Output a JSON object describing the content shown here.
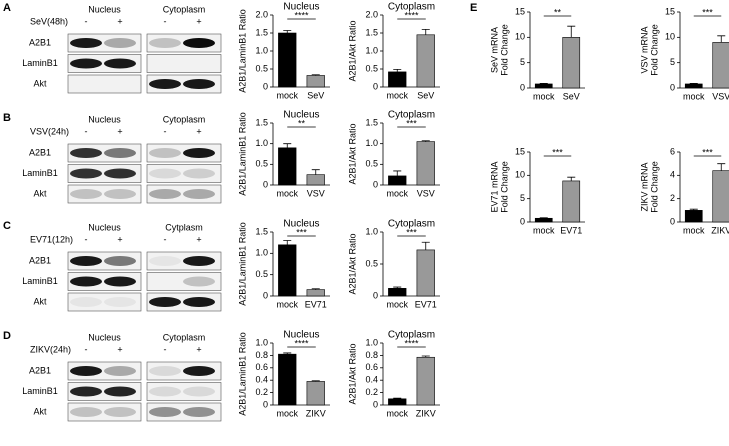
{
  "panels": [
    {
      "label": "A",
      "treatment": "SeV(48h)",
      "groups": [
        "Nucleus",
        "Cytoplasm"
      ],
      "lanes": [
        "-",
        "+"
      ],
      "rows": [
        "A2B1",
        "LaminB1",
        "Akt"
      ]
    },
    {
      "label": "B",
      "treatment": "VSV(24h)",
      "groups": [
        "Nucleus",
        "Cytoplasm"
      ],
      "lanes": [
        "-",
        "+"
      ],
      "rows": [
        "A2B1",
        "LaminB1",
        "Akt"
      ]
    },
    {
      "label": "C",
      "treatment": "EV71(12h)",
      "groups": [
        "Nucleus",
        "Cytplasm"
      ],
      "lanes": [
        "-",
        "+"
      ],
      "rows": [
        "A2B1",
        "LaminB1",
        "Akt"
      ]
    },
    {
      "label": "D",
      "treatment": "ZIKV(24h)",
      "groups": [
        "Nucleus",
        "Cytoplasm"
      ],
      "lanes": [
        "-",
        "+"
      ],
      "rows": [
        "A2B1",
        "LaminB1",
        "Akt"
      ]
    }
  ],
  "panel_e": {
    "label": "E"
  },
  "chart_data": [
    {
      "type": "bar",
      "title": "Nucleus",
      "ylabel": [
        "A2B1/LaminB1 Ratio"
      ],
      "categories": [
        "mock",
        "SeV"
      ],
      "values": [
        1.5,
        0.32
      ],
      "errors": [
        0.07,
        0.02
      ],
      "colors": [
        "#000000",
        "#999999"
      ],
      "significance": "****",
      "ylim": [
        0,
        2
      ],
      "yticks": [
        0,
        {
          "value": 0.5,
          "label": "0.5"
        },
        {
          "value": 1,
          "label": "1.0"
        },
        1.5,
        {
          "value": 2,
          "label": "2.0"
        }
      ]
    },
    {
      "type": "bar",
      "title": "Cytoplasm",
      "ylabel": [
        "A2B1/Akt Ratio"
      ],
      "categories": [
        "mock",
        "SeV"
      ],
      "values": [
        0.42,
        1.45
      ],
      "errors": [
        0.07,
        0.15
      ],
      "colors": [
        "#000000",
        "#999999"
      ],
      "significance": "****",
      "ylim": [
        0,
        2
      ],
      "yticks": [
        0,
        0.5,
        {
          "value": 1,
          "label": "1.0"
        },
        1.5,
        {
          "value": 2,
          "label": "2.0"
        }
      ]
    },
    {
      "type": "bar",
      "title": "Nucleus",
      "ylabel": [
        "A2B1/LaminB1 Ratio"
      ],
      "categories": [
        "mock",
        "VSV"
      ],
      "values": [
        0.9,
        0.25
      ],
      "errors": [
        0.1,
        0.12
      ],
      "colors": [
        "#000000",
        "#999999"
      ],
      "significance": "**",
      "ylim": [
        0,
        1.5
      ],
      "yticks": [
        0,
        0.5,
        {
          "value": 1,
          "label": "1.0"
        },
        1.5
      ]
    },
    {
      "type": "bar",
      "title": "Cytoplasm",
      "ylabel": [
        "A2B1/Akt Ratio"
      ],
      "categories": [
        "mock",
        "VSV"
      ],
      "values": [
        0.22,
        1.05
      ],
      "errors": [
        0.12,
        0.02
      ],
      "colors": [
        "#000000",
        "#999999"
      ],
      "significance": "***",
      "ylim": [
        0,
        1.5
      ],
      "yticks": [
        0,
        0.5,
        {
          "value": 1,
          "label": "1.0"
        },
        1.5
      ]
    },
    {
      "type": "bar",
      "title": "Nucleus",
      "ylabel": [
        "A2B1/LaminB1 Ratio"
      ],
      "categories": [
        "mock",
        "EV71"
      ],
      "values": [
        1.2,
        0.15
      ],
      "errors": [
        0.1,
        0.02
      ],
      "colors": [
        "#000000",
        "#999999"
      ],
      "significance": "***",
      "ylim": [
        0,
        1.5
      ],
      "yticks": [
        0,
        0.5,
        {
          "value": 1,
          "label": "1.0"
        },
        1.5
      ]
    },
    {
      "type": "bar",
      "title": "Cytoplasm",
      "ylabel": [
        "A2B1/Akt Ratio"
      ],
      "categories": [
        "mock",
        "EV71"
      ],
      "values": [
        0.12,
        0.72
      ],
      "errors": [
        0.02,
        0.12
      ],
      "colors": [
        "#000000",
        "#999999"
      ],
      "significance": "***",
      "ylim": [
        0,
        1
      ],
      "yticks": [
        0,
        0.5,
        {
          "value": 1,
          "label": "1.0"
        }
      ]
    },
    {
      "type": "bar",
      "title": "Nucleus",
      "ylabel": [
        "A2B1/LaminB1 Ratio"
      ],
      "categories": [
        "mock",
        "ZIKV"
      ],
      "values": [
        0.82,
        0.38
      ],
      "errors": [
        0.02,
        0.01
      ],
      "colors": [
        "#000000",
        "#999999"
      ],
      "significance": "****",
      "ylim": [
        0,
        1
      ],
      "yticks": [
        0,
        0.2,
        0.4,
        0.6,
        0.8,
        {
          "value": 1,
          "label": "1.0"
        }
      ]
    },
    {
      "type": "bar",
      "title": "Cytoplasm",
      "ylabel": [
        "A2B1/Akt Ratio"
      ],
      "categories": [
        "mock",
        "ZIKV"
      ],
      "values": [
        0.1,
        0.77
      ],
      "errors": [
        0.01,
        0.02
      ],
      "colors": [
        "#000000",
        "#999999"
      ],
      "significance": "****",
      "ylim": [
        0,
        1
      ],
      "yticks": [
        0,
        0.2,
        0.4,
        0.6,
        0.8,
        {
          "value": 1,
          "label": "1.0"
        }
      ]
    },
    {
      "type": "bar",
      "ylabel": [
        "SeV mRNA",
        "Fold Change"
      ],
      "categories": [
        "mock",
        "SeV"
      ],
      "values": [
        0.8,
        10
      ],
      "errors": [
        0.1,
        2.2
      ],
      "colors": [
        "#000000",
        "#999999"
      ],
      "significance": "**",
      "ylim": [
        0,
        15
      ],
      "yticks": [
        0,
        5,
        10,
        15
      ]
    },
    {
      "type": "bar",
      "ylabel": [
        "VSV mRNA",
        "Fold Change"
      ],
      "categories": [
        "mock",
        "VSV"
      ],
      "values": [
        0.8,
        9
      ],
      "errors": [
        0.1,
        1.3
      ],
      "colors": [
        "#000000",
        "#999999"
      ],
      "significance": "***",
      "ylim": [
        0,
        15
      ],
      "yticks": [
        0,
        5,
        10,
        15
      ]
    },
    {
      "type": "bar",
      "ylabel": [
        "EV71 mRNA",
        "Fold Change"
      ],
      "categories": [
        "mock",
        "EV71"
      ],
      "values": [
        0.8,
        8.8
      ],
      "errors": [
        0.1,
        0.8
      ],
      "colors": [
        "#000000",
        "#999999"
      ],
      "significance": "***",
      "ylim": [
        0,
        15
      ],
      "yticks": [
        0,
        5,
        10,
        15
      ]
    },
    {
      "type": "bar",
      "ylabel": [
        "ZIKV mRNA",
        "Fold Change"
      ],
      "categories": [
        "mock",
        "ZIKV"
      ],
      "values": [
        1,
        4.4
      ],
      "errors": [
        0.1,
        0.6
      ],
      "colors": [
        "#000000",
        "#999999"
      ],
      "significance": "***",
      "ylim": [
        0,
        6
      ],
      "yticks": [
        0,
        2,
        4,
        6
      ]
    }
  ]
}
